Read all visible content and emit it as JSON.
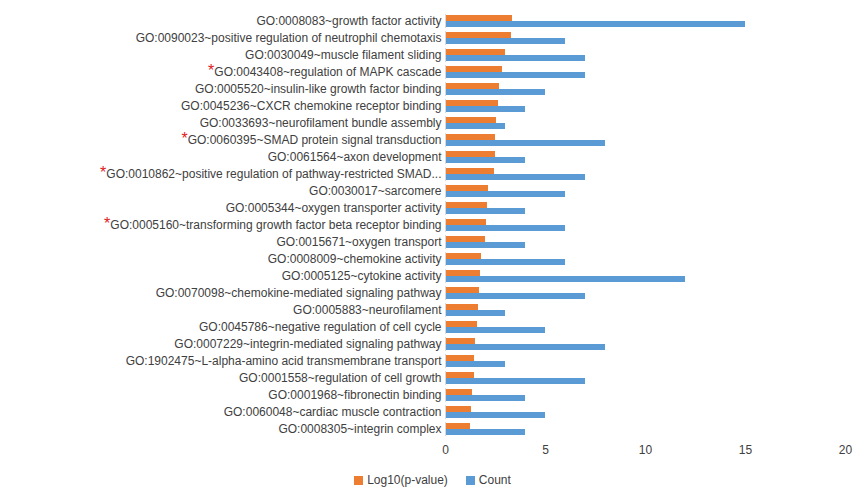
{
  "chart_data": {
    "type": "bar",
    "orientation": "horizontal",
    "categories": [
      "GO:0008083~growth factor activity",
      "GO:0090023~positive regulation of neutrophil chemotaxis",
      "GO:0030049~muscle filament sliding",
      "GO:0043408~regulation of MAPK cascade",
      "GO:0005520~insulin-like growth factor binding",
      "GO:0045236~CXCR chemokine receptor binding",
      "GO:0033693~neurofilament bundle assembly",
      "GO:0060395~SMAD protein signal transduction",
      "GO:0061564~axon development",
      "GO:0010862~positive regulation of pathway-restricted SMAD...",
      "GO:0030017~sarcomere",
      "GO:0005344~oxygen transporter activity",
      "GO:0005160~transforming growth factor beta receptor binding",
      "GO:0015671~oxygen transport",
      "GO:0008009~chemokine activity",
      "GO:0005125~cytokine activity",
      "GO:0070098~chemokine-mediated signaling pathway",
      "GO:0005883~neurofilament",
      "GO:0045786~negative regulation of cell cycle",
      "GO:0007229~integrin-mediated signaling pathway",
      "GO:1902475~L-alpha-amino acid transmembrane transport",
      "GO:0001558~regulation of cell growth",
      "GO:0001968~fibronectin binding",
      "GO:0060048~cardiac muscle contraction",
      "GO:0008305~integrin complex"
    ],
    "series": [
      {
        "name": "Log10(p-value)",
        "color": "#ED7D31",
        "values": [
          3.35,
          3.3,
          3.0,
          2.85,
          2.7,
          2.65,
          2.55,
          2.5,
          2.5,
          2.45,
          2.15,
          2.1,
          2.05,
          2.0,
          1.8,
          1.75,
          1.7,
          1.65,
          1.6,
          1.5,
          1.45,
          1.45,
          1.35,
          1.3,
          1.25
        ]
      },
      {
        "name": "Count",
        "color": "#5B9BD5",
        "values": [
          15,
          6,
          7,
          7,
          5,
          4,
          3,
          8,
          4,
          7,
          6,
          4,
          6,
          4,
          6,
          12,
          7,
          3,
          5,
          8,
          3,
          7,
          4,
          5,
          4
        ]
      }
    ],
    "xlim": [
      0,
      20
    ],
    "xticks": [
      0,
      5,
      10,
      15,
      20
    ],
    "grid": false,
    "legend": "bottom",
    "annotations": [
      {
        "text": "*",
        "category": "GO:0043408~regulation of MAPK cascade",
        "color": "#E02020"
      },
      {
        "text": "*",
        "category": "GO:0060395~SMAD protein signal transduction",
        "color": "#E02020"
      },
      {
        "text": "*",
        "category": "GO:0010862~positive regulation of pathway-restricted SMAD...",
        "color": "#E02020"
      },
      {
        "text": "*",
        "category": "GO:0005160~transforming growth factor beta receptor binding",
        "color": "#E02020"
      }
    ]
  }
}
